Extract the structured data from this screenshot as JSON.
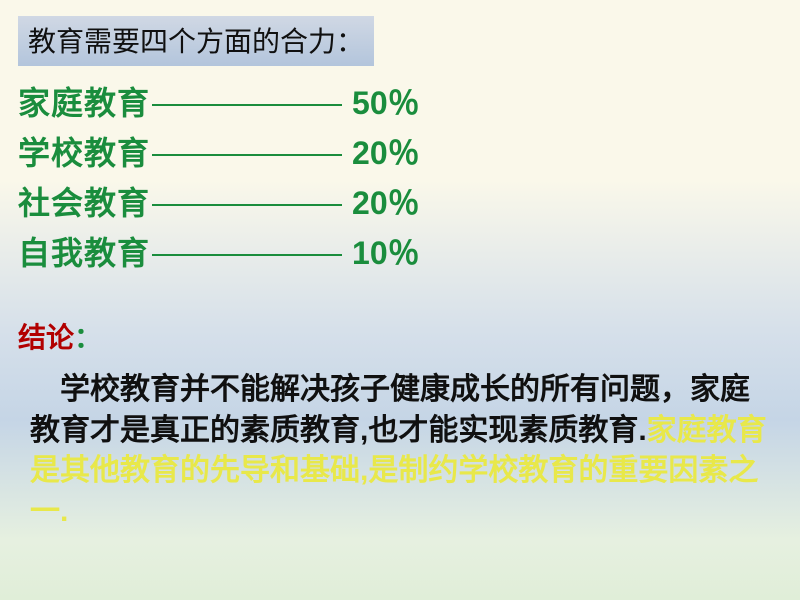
{
  "title": "教育需要四个方面的合力：",
  "rows": [
    {
      "label": "家庭教育",
      "pct": "50％"
    },
    {
      "label": "学校教育",
      "pct": "20％"
    },
    {
      "label": "社会教育",
      "pct": "20％"
    },
    {
      "label": "自我教育",
      "pct": "10％"
    }
  ],
  "conclusion": {
    "label": "结论",
    "colon": "：",
    "body_black": "学校教育并不能解决孩子健康成长的所有问题，家庭教育才是真正的素质教育,也才能实现素质教育.",
    "body_yellow": "家庭教育是其他教育的先导和基础,是制约学校教育的重要因素之一."
  },
  "colors": {
    "green": "#1a8d3d",
    "red": "#b20000",
    "yellow": "#e8e84a",
    "black": "#101010",
    "title_bg_top": "#d0d8e4",
    "title_bg_bottom": "#b3c5dc"
  }
}
